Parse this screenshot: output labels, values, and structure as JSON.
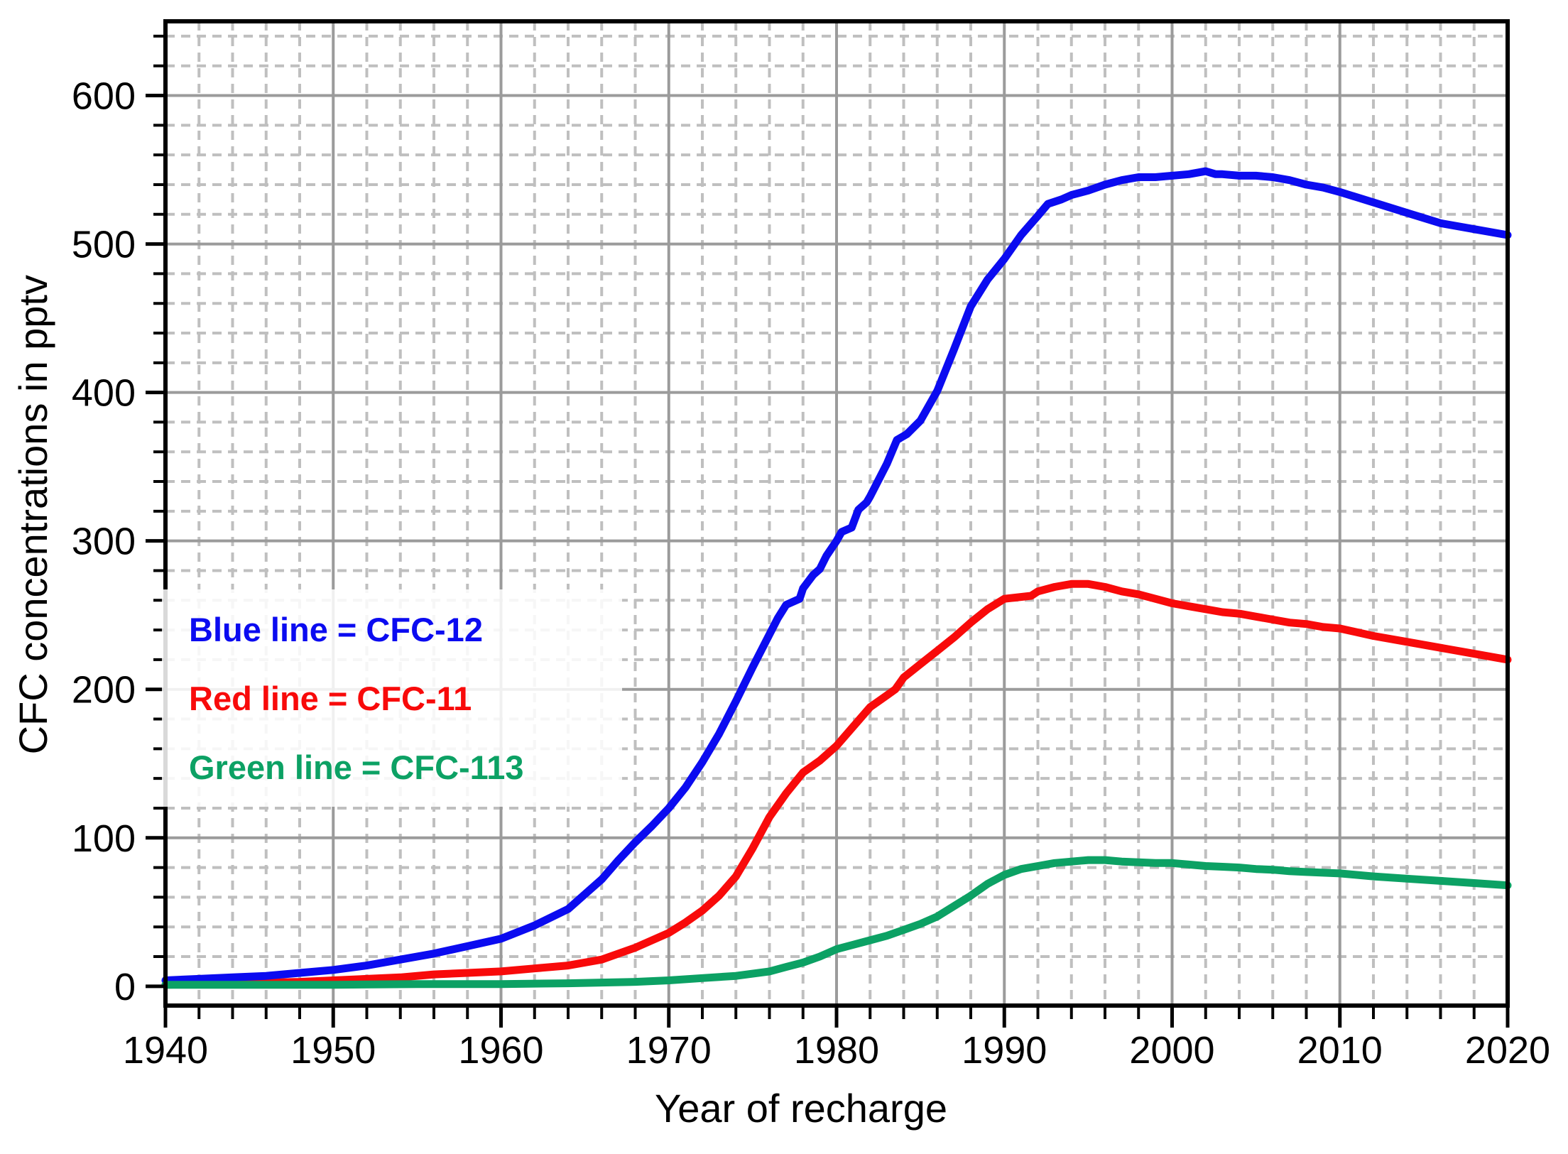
{
  "chart_data": {
    "type": "line",
    "title": "",
    "xlabel": "Year of recharge",
    "ylabel": "CFC concentrations in pptv",
    "xlim": [
      1940,
      2020
    ],
    "ylim": [
      -13,
      650
    ],
    "xticks_major": [
      1940,
      1950,
      1960,
      1970,
      1980,
      1990,
      2000,
      2010,
      2020
    ],
    "xtick_minor_step": 2,
    "yticks_major": [
      0,
      100,
      200,
      300,
      400,
      500,
      600
    ],
    "ytick_minor_step": 20,
    "ytick_minor_max": 640,
    "grid": {
      "on": true,
      "major_color": "#9b9b9b",
      "minor_color": "#bfbfbf",
      "minor_style": "dashed"
    },
    "colors": {
      "axis": "#000000",
      "background": "#ffffff"
    },
    "legend": [
      {
        "label": "Blue line = CFC-12",
        "color": "#0b0bf0"
      },
      {
        "label": "Red line = CFC-11",
        "color": "#f80a0a"
      },
      {
        "label": "Green line = CFC-113",
        "color": "#0ca164"
      }
    ],
    "legend_position": "upper-left-inside",
    "series": [
      {
        "name": "CFC-11",
        "color": "#f80a0a",
        "points": [
          [
            1940,
            1
          ],
          [
            1944,
            2
          ],
          [
            1948,
            3
          ],
          [
            1950,
            4
          ],
          [
            1952,
            5
          ],
          [
            1954,
            6
          ],
          [
            1956,
            8
          ],
          [
            1958,
            9
          ],
          [
            1960,
            10
          ],
          [
            1962,
            12
          ],
          [
            1964,
            14
          ],
          [
            1966,
            18
          ],
          [
            1968,
            26
          ],
          [
            1970,
            36
          ],
          [
            1971,
            43
          ],
          [
            1972,
            51
          ],
          [
            1973,
            61
          ],
          [
            1974,
            74
          ],
          [
            1975,
            93
          ],
          [
            1976,
            114
          ],
          [
            1977,
            130
          ],
          [
            1978,
            144
          ],
          [
            1979,
            152
          ],
          [
            1980,
            162
          ],
          [
            1981,
            175
          ],
          [
            1982,
            188
          ],
          [
            1983,
            196
          ],
          [
            1983.5,
            200
          ],
          [
            1984,
            208
          ],
          [
            1985,
            217
          ],
          [
            1986,
            226
          ],
          [
            1987,
            235
          ],
          [
            1988,
            245
          ],
          [
            1989,
            254
          ],
          [
            1990,
            261
          ],
          [
            1990.8,
            262
          ],
          [
            1991.6,
            263
          ],
          [
            1992,
            266
          ],
          [
            1993,
            269
          ],
          [
            1994,
            271
          ],
          [
            1995,
            271
          ],
          [
            1996,
            269
          ],
          [
            1997,
            266
          ],
          [
            1998,
            264
          ],
          [
            1999,
            261
          ],
          [
            2000,
            258
          ],
          [
            2001,
            256
          ],
          [
            2002,
            254
          ],
          [
            2003,
            252
          ],
          [
            2004,
            251
          ],
          [
            2005,
            249
          ],
          [
            2006,
            247
          ],
          [
            2007,
            245
          ],
          [
            2008,
            244
          ],
          [
            2009,
            242
          ],
          [
            2010,
            241
          ],
          [
            2012,
            236
          ],
          [
            2014,
            232
          ],
          [
            2016,
            228
          ],
          [
            2018,
            224
          ],
          [
            2020,
            220
          ]
        ]
      },
      {
        "name": "CFC-12",
        "color": "#0b0bf0",
        "points": [
          [
            1940,
            4
          ],
          [
            1942,
            5
          ],
          [
            1944,
            6
          ],
          [
            1946,
            7
          ],
          [
            1948,
            9
          ],
          [
            1950,
            11
          ],
          [
            1952,
            14
          ],
          [
            1954,
            18
          ],
          [
            1956,
            22
          ],
          [
            1958,
            27
          ],
          [
            1960,
            32
          ],
          [
            1962,
            41
          ],
          [
            1964,
            52
          ],
          [
            1966,
            72
          ],
          [
            1967,
            85
          ],
          [
            1968,
            97
          ],
          [
            1969,
            108
          ],
          [
            1970,
            120
          ],
          [
            1971,
            134
          ],
          [
            1972,
            151
          ],
          [
            1973,
            170
          ],
          [
            1974,
            192
          ],
          [
            1975,
            215
          ],
          [
            1976,
            237
          ],
          [
            1976.5,
            248
          ],
          [
            1977,
            257
          ],
          [
            1977.8,
            261
          ],
          [
            1978,
            268
          ],
          [
            1978.6,
            277
          ],
          [
            1979,
            281
          ],
          [
            1979.4,
            290
          ],
          [
            1980,
            300
          ],
          [
            1980.3,
            306
          ],
          [
            1980.9,
            309
          ],
          [
            1981.3,
            321
          ],
          [
            1981.8,
            326
          ],
          [
            1982,
            330
          ],
          [
            1983,
            352
          ],
          [
            1983.6,
            368
          ],
          [
            1984.2,
            372
          ],
          [
            1985,
            381
          ],
          [
            1986,
            401
          ],
          [
            1987,
            429
          ],
          [
            1988,
            458
          ],
          [
            1989,
            476
          ],
          [
            1990,
            490
          ],
          [
            1991,
            506
          ],
          [
            1992,
            519
          ],
          [
            1992.6,
            527
          ],
          [
            1993.4,
            530
          ],
          [
            1994,
            533
          ],
          [
            1995,
            536
          ],
          [
            1996,
            540
          ],
          [
            1997,
            543
          ],
          [
            1998,
            545
          ],
          [
            1999,
            545
          ],
          [
            2000,
            546
          ],
          [
            2001,
            547
          ],
          [
            2002,
            549
          ],
          [
            2002.6,
            547
          ],
          [
            2003,
            547
          ],
          [
            2004,
            546
          ],
          [
            2005,
            546
          ],
          [
            2006,
            545
          ],
          [
            2007,
            543
          ],
          [
            2008,
            540
          ],
          [
            2009,
            538
          ],
          [
            2010,
            535
          ],
          [
            2012,
            528
          ],
          [
            2014,
            521
          ],
          [
            2016,
            514
          ],
          [
            2018,
            510
          ],
          [
            2020,
            506
          ]
        ]
      },
      {
        "name": "CFC-113",
        "color": "#0ca164",
        "points": [
          [
            1940,
            1
          ],
          [
            1950,
            1
          ],
          [
            1955,
            1.5
          ],
          [
            1960,
            1.5
          ],
          [
            1964,
            2
          ],
          [
            1966,
            2.5
          ],
          [
            1968,
            3
          ],
          [
            1970,
            4
          ],
          [
            1972,
            5.5
          ],
          [
            1974,
            7
          ],
          [
            1976,
            10
          ],
          [
            1977,
            13
          ],
          [
            1978,
            16
          ],
          [
            1979,
            20
          ],
          [
            1980,
            25
          ],
          [
            1981,
            28
          ],
          [
            1982,
            31
          ],
          [
            1983,
            34
          ],
          [
            1984,
            38
          ],
          [
            1985,
            42
          ],
          [
            1986,
            47
          ],
          [
            1987,
            54
          ],
          [
            1988,
            61
          ],
          [
            1989,
            69
          ],
          [
            1990,
            75
          ],
          [
            1991,
            79
          ],
          [
            1992,
            81
          ],
          [
            1993,
            83
          ],
          [
            1994,
            84
          ],
          [
            1995,
            85
          ],
          [
            1996,
            85
          ],
          [
            1997,
            84
          ],
          [
            1998,
            83.5
          ],
          [
            1999,
            83
          ],
          [
            2000,
            83
          ],
          [
            2001,
            82
          ],
          [
            2002,
            81
          ],
          [
            2003,
            80.5
          ],
          [
            2004,
            80
          ],
          [
            2005,
            79
          ],
          [
            2006,
            78.5
          ],
          [
            2007,
            77.5
          ],
          [
            2008,
            77
          ],
          [
            2009,
            76.5
          ],
          [
            2010,
            76
          ],
          [
            2012,
            74
          ],
          [
            2014,
            72.5
          ],
          [
            2016,
            71
          ],
          [
            2018,
            69.5
          ],
          [
            2020,
            68
          ]
        ]
      }
    ]
  }
}
